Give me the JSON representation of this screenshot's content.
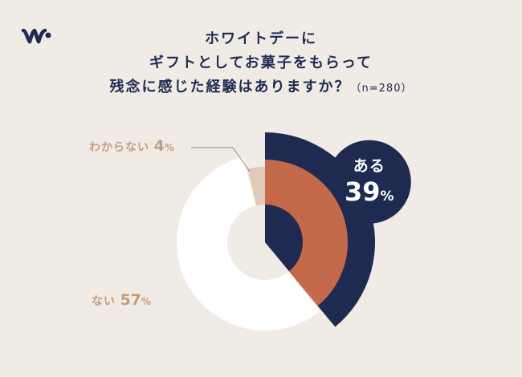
{
  "title": {
    "line1": "ホワイトデーに",
    "line2": "ギフトとしてお菓子をもらって",
    "line3": "残念に感じた経験はありますか？",
    "sample": "（n=280）"
  },
  "colors": {
    "background": "#f1ebe6",
    "navy": "#1e2a50",
    "aru": "#c4694a",
    "nai": "#ffffff",
    "wakaranai": "#dfcabb",
    "label": "#c59c79"
  },
  "chart_data": {
    "type": "pie",
    "variant": "donut",
    "unit": "%",
    "slices": [
      {
        "label": "ある",
        "value": 39
      },
      {
        "label": "ない",
        "value": 57
      },
      {
        "label": "わからない",
        "value": 4
      }
    ]
  },
  "labels": {
    "aru": {
      "text": "ある",
      "value": "39",
      "unit": "%"
    },
    "nai": {
      "text": "ない",
      "value": "57",
      "unit": "%"
    },
    "wakaranai": {
      "text": "わからない",
      "value": "4",
      "unit": "%"
    }
  }
}
